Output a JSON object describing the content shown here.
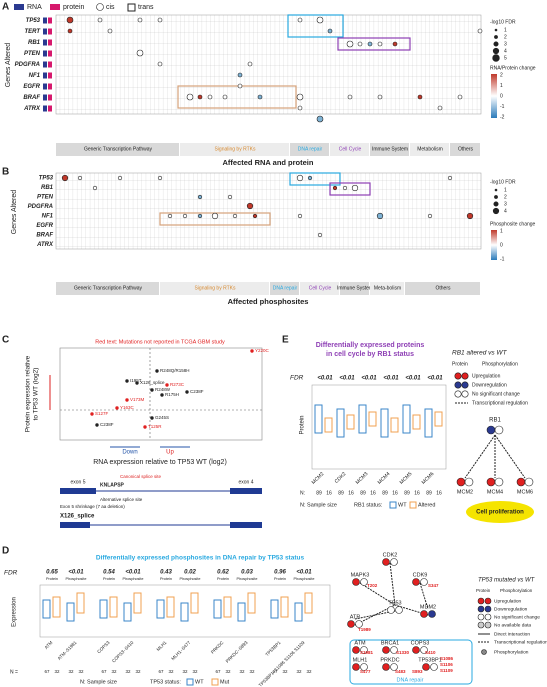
{
  "panel_a": {
    "label": "A",
    "legend": [
      "RNA",
      "protein",
      "cis",
      "trans"
    ],
    "y_title": "Genes Altered",
    "x_title": "Affected RNA and protein",
    "rows": [
      "TP53",
      "TERT",
      "RB1",
      "PTEN",
      "PDGFRA",
      "NF1",
      "EGFR",
      "BRAF",
      "ATRX"
    ],
    "pathways": [
      "Generic Transcription Pathway",
      "Signaling by RTKs",
      "DNA repair",
      "Cell Cycle",
      "Immune System",
      "Metabolism",
      "Others"
    ],
    "size_legend_title": "-log10 FDR",
    "size_ticks": [
      1,
      2,
      3,
      4,
      5
    ],
    "color_legend_title": "RNA/Protein change",
    "color_ticks": [
      2,
      1,
      0,
      -1,
      -2
    ]
  },
  "panel_b": {
    "label": "B",
    "y_title": "Genes Altered",
    "x_title": "Affected phosphosites",
    "rows": [
      "TP53",
      "RB1",
      "PTEN",
      "PDGFRA",
      "NF1",
      "EGFR",
      "BRAF",
      "ATRX"
    ],
    "pathways": [
      "Generic Transcription Pathway",
      "Signaling by RTKs",
      "DNA repair",
      "Cell Cycle",
      "Immune System",
      "Meta-bolism",
      "Others"
    ],
    "size_legend_title": "-log10 FDR",
    "size_ticks": [
      1,
      2,
      3,
      4
    ],
    "color_legend_title": "Phosphosite change",
    "color_ticks": [
      1,
      0,
      -1
    ]
  },
  "panel_c": {
    "label": "C",
    "note": "Red text: Mutations not reported in TCGA GBM study",
    "y_title_lines": [
      "Protein expression relative",
      "to TP53 WT (log2)"
    ],
    "x_title": "RNA expression relative to TP53 WT (log2)",
    "down": "Down",
    "up": "Up",
    "mutations": [
      {
        "label": "Y220C",
        "color": "#e02020"
      },
      {
        "label": "R248Q/R158H",
        "color": "#222"
      },
      {
        "label": "I195T",
        "color": "#222"
      },
      {
        "label": "X126_splice",
        "color": "#222"
      },
      {
        "label": "R273C",
        "color": "#e02020"
      },
      {
        "label": "R248W",
        "color": "#222"
      },
      {
        "label": "C238F",
        "color": "#222"
      },
      {
        "label": "R175H",
        "color": "#222"
      },
      {
        "label": "V173M",
        "color": "#e02020"
      },
      {
        "label": "Y163C",
        "color": "#e02020"
      },
      {
        "label": "S127F",
        "color": "#e02020"
      },
      {
        "label": "G245S",
        "color": "#222"
      },
      {
        "label": "C238F",
        "color": "#222"
      },
      {
        "label": "T125R",
        "color": "#e02020"
      }
    ],
    "gene": {
      "exon5": "exon 5",
      "motif": "KNLAPSP",
      "canonical": "Canonical splice site",
      "alternative": "Alternative splice site",
      "exon4": "exon 4",
      "shrinkage": "Exon 5 shrinkage (7 aa deletion)",
      "splice_label": "X126_splice"
    }
  },
  "panel_e": {
    "label": "E",
    "title_lines": [
      "Differentially expressed proteins",
      "in cell cycle by RB1 status"
    ],
    "fdr_label": "FDR",
    "fdr": [
      "<0.01",
      "<0.01",
      "<0.01",
      "<0.01",
      "<0.01",
      "<0.01"
    ],
    "y_title": "Protein",
    "genes": [
      "MCM2",
      "CDK2",
      "MCM3",
      "MCM4",
      "MCM5",
      "MCM6"
    ],
    "n_wt": "89",
    "n_alt": "16",
    "n_label": "N:",
    "legend_size": "N: Sample size",
    "legend_status": "RB1 status:",
    "legend_wt": "WT",
    "legend_alt": "Altered",
    "colors": {
      "wt": "#3a86c8",
      "alt": "#f0a050"
    },
    "diagram": {
      "title": "RB1 altered vs WT",
      "protein": "Protein",
      "phospho": "Phosphorylation",
      "up": "Upregulation",
      "down": "Downregulation",
      "nochange": "No significant change",
      "transcr": "Transcriptional regulation",
      "rb1": "RB1",
      "mcm2": "MCM2",
      "mcm4": "MCM4",
      "mcm6": "MCM6",
      "prolif": "Cell proliferation"
    }
  },
  "panel_d": {
    "label": "D",
    "title": "Differentially expressed phosphosites in DNA repair by TP53 status",
    "fdr_label": "FDR",
    "fdr": [
      "0.65",
      "<0.01",
      "0.54",
      "<0.01",
      "0.43",
      "0.02",
      "0.62",
      "0.03",
      "0.96",
      "<0.01"
    ],
    "sub": [
      "Protein",
      "Phosphosite"
    ],
    "y_title": "Expression",
    "labels": [
      "ATM",
      "ATM–S1981",
      "COPS3",
      "COPS3–S410",
      "MLH1",
      "MLH1–S477",
      "PRKDC",
      "PRKDC–S893",
      "TP53BP1",
      "TP53BP1–S1086 S1106 S1109"
    ],
    "n": [
      "67",
      "32",
      "67",
      "32",
      "67",
      "32",
      "67",
      "32",
      "67",
      "32"
    ],
    "n_label": "N =",
    "legend_size": "N: Sample size",
    "legend_status": "TP53 status:",
    "legend_wt": "WT",
    "legend_mut": "Mut",
    "diagram": {
      "nodes": [
        "CDK2",
        "MAPK3",
        "CDK9",
        "TP53",
        "MDM2",
        "ATR",
        "ATM",
        "BRCA1",
        "COPS3",
        "MLH1",
        "PRKDC",
        "TP53BP1"
      ],
      "sites": [
        "T1989",
        "S1981",
        "T202",
        "S347",
        "S1330",
        "S410",
        "S477",
        "S483",
        "S893",
        "S1086",
        "S1106",
        "S1109"
      ],
      "box": "DNA repair",
      "title": "TP53 mutated vs WT",
      "protein": "Protein",
      "phospho": "Phosphorylation",
      "up": "Upregulation",
      "down": "Downregulation",
      "nochange": "No significant change",
      "nodata": "No available data",
      "direct": "Direct interaction",
      "transcr": "Transcriptional regulation",
      "phos": "Phosphorylation"
    }
  }
}
